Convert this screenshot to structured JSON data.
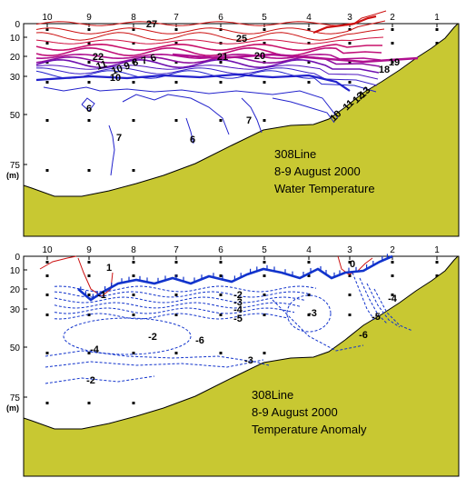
{
  "chart_data": [
    {
      "type": "contour",
      "title_lines": [
        "308Line",
        "8-9 August 2000",
        "Water Temperature"
      ],
      "stations": [
        "10",
        "9",
        "8",
        "7",
        "6",
        "5",
        "4",
        "3",
        "2",
        "1"
      ],
      "depth_ticks": [
        "0",
        "10",
        "20",
        "30",
        "50",
        "75"
      ],
      "depth_unit": "(m)",
      "contour_labels": [
        "27",
        "25",
        "22",
        "21",
        "20",
        "19",
        "18",
        "16",
        "15",
        "14",
        "13",
        "12",
        "11",
        "10",
        "9",
        "8",
        "7",
        "6"
      ],
      "colors": {
        "warm": "#cc1111",
        "mid": "#c01070",
        "cool": "#2222cc",
        "seabed": "#c8c832"
      }
    },
    {
      "type": "contour",
      "title_lines": [
        "308Line",
        "8-9 August 2000",
        "Temperature Anomaly"
      ],
      "stations": [
        "10",
        "9",
        "8",
        "7",
        "6",
        "5",
        "4",
        "3",
        "2",
        "1"
      ],
      "depth_ticks": [
        "0",
        "10",
        "20",
        "30",
        "50",
        "75"
      ],
      "depth_unit": "(m)",
      "contour_labels": [
        "1",
        "0",
        "-1",
        "-2",
        "-3",
        "-4",
        "-5",
        "-6",
        "-2",
        "-3",
        "-4",
        "-5",
        "-6",
        "-3",
        "-4",
        "-2"
      ],
      "colors": {
        "positive": "#cc1111",
        "negative": "#1133cc",
        "seabed": "#c8c832"
      }
    }
  ]
}
